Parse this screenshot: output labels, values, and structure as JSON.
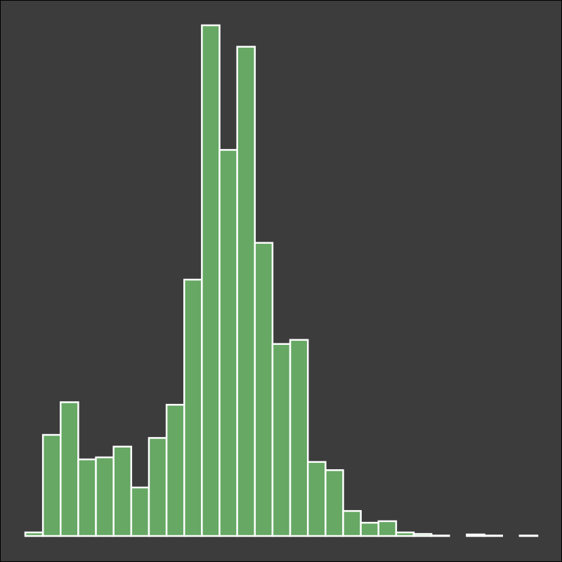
{
  "chart_data": {
    "type": "bar",
    "title": "",
    "xlabel": "",
    "ylabel": "",
    "grid": false,
    "legend": "none",
    "ylim": [
      0,
      1000
    ],
    "bin_count": 29,
    "values": [
      7,
      198,
      262,
      150,
      154,
      175,
      95,
      192,
      257,
      502,
      1000,
      756,
      958,
      574,
      376,
      384,
      145,
      129,
      49,
      26,
      29,
      7,
      4,
      1,
      0,
      3,
      1,
      0,
      1
    ],
    "colors": {
      "bar_fill": "#66a864",
      "bar_stroke": "#ffffff",
      "plot_background": "#3c3c3c",
      "outer_background": "#000000"
    }
  }
}
